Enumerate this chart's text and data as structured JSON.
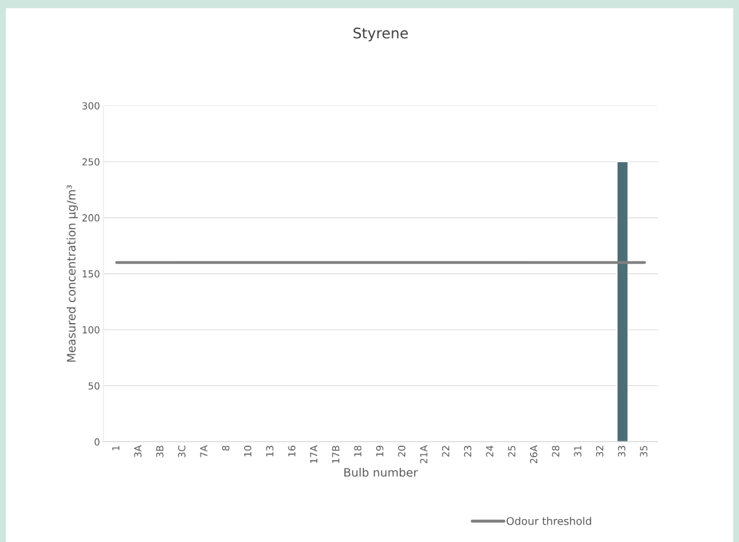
{
  "chart_data": {
    "type": "bar",
    "title": "Styrene",
    "xlabel": "Bulb number",
    "ylabel": "Measured concentration µg/m³",
    "categories": [
      "1",
      "3A",
      "3B",
      "3C",
      "7A",
      "8",
      "10",
      "13",
      "16",
      "17A",
      "17B",
      "18",
      "19",
      "20",
      "21A",
      "22",
      "23",
      "24",
      "25",
      "26A",
      "28",
      "31",
      "32",
      "33",
      "35"
    ],
    "series": [
      {
        "color": "#4d6e76",
        "values": [
          null,
          null,
          null,
          null,
          null,
          null,
          null,
          null,
          null,
          null,
          null,
          null,
          null,
          null,
          null,
          null,
          null,
          null,
          null,
          null,
          null,
          null,
          null,
          250,
          null
        ]
      },
      {
        "type": "line",
        "name": "Odour threshold",
        "color": "#808080",
        "values": [
          160,
          160,
          160,
          160,
          160,
          160,
          160,
          160,
          160,
          160,
          160,
          160,
          160,
          160,
          160,
          160,
          160,
          160,
          160,
          160,
          160,
          160,
          160,
          160,
          160
        ]
      }
    ],
    "ylim": [
      0,
      300
    ],
    "yticks": [
      0,
      50,
      100,
      150,
      200,
      250,
      300
    ],
    "grid": "y",
    "legend": "bottom"
  }
}
